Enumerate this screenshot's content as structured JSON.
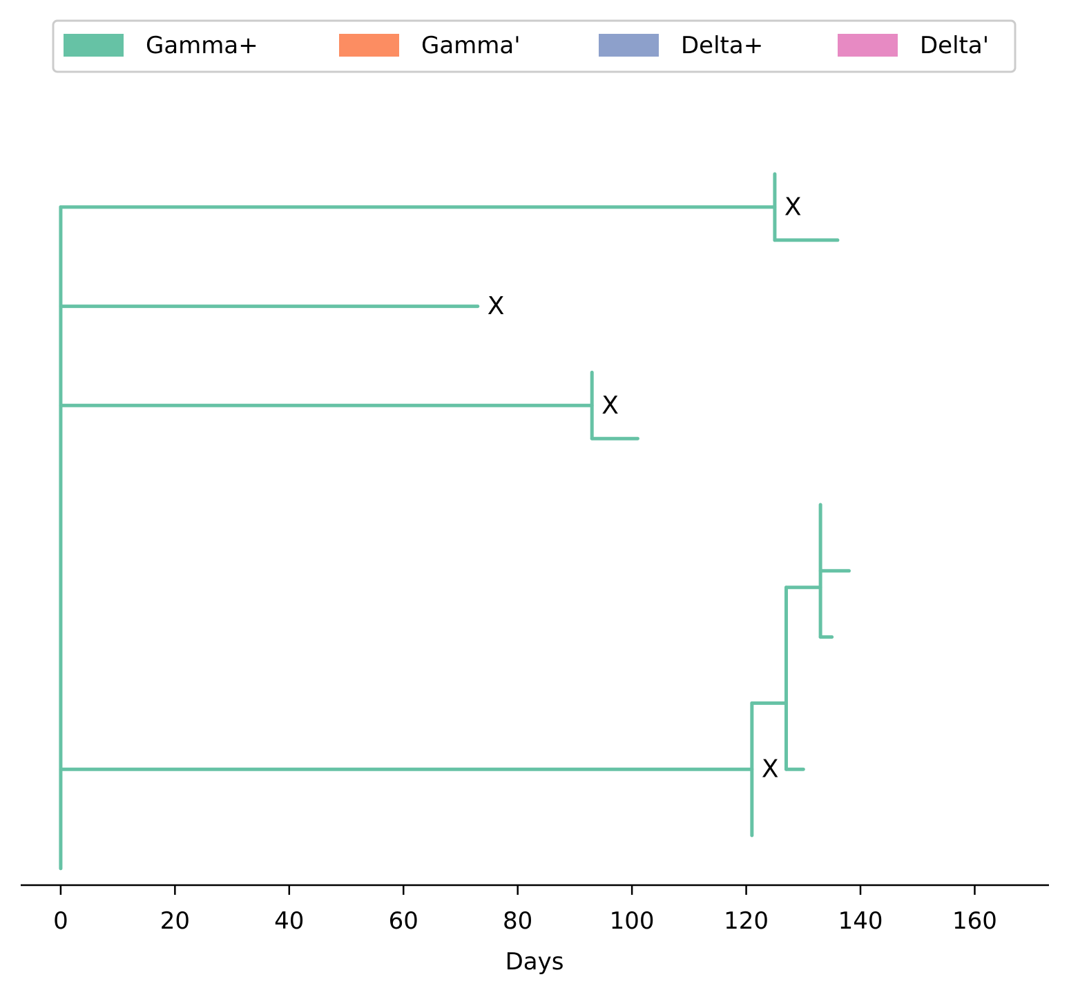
{
  "chart_data": {
    "type": "tree",
    "title": "",
    "xlabel": "Days",
    "ylabel": "",
    "xlim": [
      -7,
      173
    ],
    "x_ticks": [
      0,
      20,
      40,
      60,
      80,
      100,
      120,
      140,
      160
    ],
    "grid": false,
    "legend": {
      "placement": "top",
      "entries": [
        {
          "label": "Gamma+",
          "color": "#66c2a5"
        },
        {
          "label": "Gamma'",
          "color": "#fc8d62"
        },
        {
          "label": "Delta+",
          "color": "#8da0cb"
        },
        {
          "label": "Delta'",
          "color": "#e78ac3"
        }
      ]
    },
    "segments": [
      {
        "x0": 0,
        "x1": 0,
        "y0": 10,
        "y1": 0,
        "type": "Gamma+"
      },
      {
        "x0": 0,
        "x1": 125,
        "y0": 0,
        "y1": 0,
        "type": "Gamma+"
      },
      {
        "x0": 125,
        "x1": 125,
        "y0": -0.5,
        "y1": 0.5,
        "type": "Gamma+"
      },
      {
        "x0": 125,
        "x1": 136,
        "y0": 0.5,
        "y1": 0.5,
        "type": "Gamma+"
      },
      {
        "x0": 0,
        "x1": 73,
        "y0": 1.5,
        "y1": 1.5,
        "type": "Gamma+"
      },
      {
        "x0": 0,
        "x1": 93,
        "y0": 3,
        "y1": 3,
        "type": "Gamma+"
      },
      {
        "x0": 93,
        "x1": 93,
        "y0": 2.5,
        "y1": 3.5,
        "type": "Gamma+"
      },
      {
        "x0": 93,
        "x1": 101,
        "y0": 3.5,
        "y1": 3.5,
        "type": "Gamma+"
      },
      {
        "x0": 0,
        "x1": 121,
        "y0": 8.5,
        "y1": 8.5,
        "type": "Gamma+"
      },
      {
        "x0": 121,
        "x1": 121,
        "y0": 7.5,
        "y1": 9.5,
        "type": "Gamma+"
      },
      {
        "x0": 121,
        "x1": 127,
        "y0": 7.5,
        "y1": 7.5,
        "type": "Gamma+"
      },
      {
        "x0": 127,
        "x1": 127,
        "y0": 5.75,
        "y1": 8.5,
        "type": "Gamma+"
      },
      {
        "x0": 127,
        "x1": 130,
        "y0": 8.5,
        "y1": 8.5,
        "type": "Gamma+"
      },
      {
        "x0": 127,
        "x1": 133,
        "y0": 5.75,
        "y1": 5.75,
        "type": "Gamma+"
      },
      {
        "x0": 133,
        "x1": 133,
        "y0": 4.5,
        "y1": 6.5,
        "type": "Gamma+"
      },
      {
        "x0": 133,
        "x1": 138,
        "y0": 5.5,
        "y1": 5.5,
        "type": "Gamma+"
      },
      {
        "x0": 133,
        "x1": 135,
        "y0": 6.5,
        "y1": 6.5,
        "type": "Gamma+"
      }
    ],
    "markers": [
      {
        "label": "X",
        "x": 125,
        "y": 0
      },
      {
        "label": "X",
        "x": 73,
        "y": 1.5
      },
      {
        "label": "X",
        "x": 93,
        "y": 3
      },
      {
        "label": "X",
        "x": 121,
        "y": 8.5
      }
    ]
  }
}
